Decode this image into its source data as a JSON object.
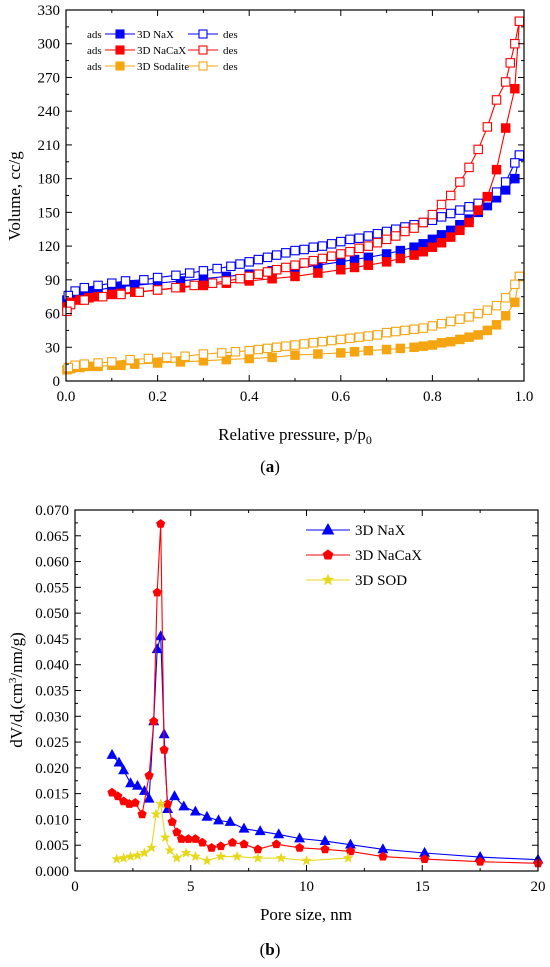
{
  "colors": {
    "naX": "#0000ff",
    "naCaX": "#ff0000",
    "sod": "#f5a511",
    "sodB": "#e8d81c"
  },
  "chart_data": [
    {
      "type": "scatter",
      "caption": "(a)",
      "xlabel": "Relative pressure, p/p0",
      "ylabel": "Volume, cc/g",
      "xlim": [
        0,
        1.0
      ],
      "ylim": [
        0,
        330
      ],
      "xticks": [
        "0.0",
        "0.2",
        "0.4",
        "0.6",
        "0.8",
        "1.0"
      ],
      "yticks": [
        "0",
        "30",
        "60",
        "90",
        "120",
        "150",
        "180",
        "210",
        "240",
        "270",
        "300",
        "330"
      ],
      "grid": false,
      "legend_position": "top-left",
      "legend_rows": [
        {
          "left": "ads",
          "name": "3D NaX",
          "right": "des",
          "color": "#0000ff"
        },
        {
          "left": "ads",
          "name": "3D NaCaX",
          "right": "des",
          "color": "#ff0000"
        },
        {
          "left": "ads",
          "name": "3D Sodalite",
          "right": "des",
          "color": "#f5a511"
        }
      ],
      "series": [
        {
          "name": "3D NaX ads",
          "marker": "square-filled",
          "color": "#0000ff",
          "x": [
            0.002,
            0.01,
            0.03,
            0.05,
            0.07,
            0.1,
            0.12,
            0.15,
            0.2,
            0.25,
            0.3,
            0.35,
            0.4,
            0.45,
            0.5,
            0.55,
            0.6,
            0.63,
            0.66,
            0.7,
            0.73,
            0.76,
            0.78,
            0.8,
            0.82,
            0.84,
            0.86,
            0.88,
            0.9,
            0.92,
            0.94,
            0.96,
            0.98,
            0.99
          ],
          "y": [
            72,
            75,
            78,
            80,
            81,
            83,
            84,
            85,
            87,
            89,
            91,
            93,
            95,
            98,
            100,
            103,
            106,
            108,
            110,
            113,
            116,
            119,
            122,
            126,
            130,
            134,
            139,
            144,
            150,
            156,
            163,
            170,
            180,
            200
          ]
        },
        {
          "name": "3D NaX des",
          "marker": "square-open",
          "color": "#0000ff",
          "x": [
            0.99,
            0.98,
            0.96,
            0.94,
            0.92,
            0.9,
            0.88,
            0.86,
            0.84,
            0.82,
            0.8,
            0.78,
            0.76,
            0.74,
            0.72,
            0.7,
            0.68,
            0.66,
            0.64,
            0.62,
            0.6,
            0.58,
            0.56,
            0.54,
            0.52,
            0.5,
            0.48,
            0.46,
            0.44,
            0.42,
            0.4,
            0.38,
            0.36,
            0.33,
            0.3,
            0.27,
            0.24,
            0.2,
            0.17,
            0.13,
            0.1,
            0.07,
            0.04,
            0.02,
            0.005
          ],
          "y": [
            201,
            194,
            177,
            168,
            162,
            158,
            155,
            152,
            149,
            146,
            143,
            141,
            139,
            137,
            135,
            133,
            131,
            129,
            127,
            126,
            124,
            122,
            120,
            119,
            117,
            116,
            114,
            112,
            110,
            108,
            106,
            104,
            102,
            100,
            98,
            96,
            94,
            92,
            90,
            89,
            87,
            85,
            83,
            80,
            76
          ]
        },
        {
          "name": "3D NaCaX ads",
          "marker": "square-filled",
          "color": "#ff0000",
          "x": [
            0.002,
            0.01,
            0.03,
            0.05,
            0.07,
            0.1,
            0.12,
            0.15,
            0.2,
            0.25,
            0.3,
            0.35,
            0.4,
            0.45,
            0.5,
            0.55,
            0.6,
            0.63,
            0.66,
            0.7,
            0.73,
            0.76,
            0.78,
            0.8,
            0.82,
            0.84,
            0.86,
            0.88,
            0.9,
            0.92,
            0.94,
            0.96,
            0.98,
            0.99
          ],
          "y": [
            66,
            70,
            72,
            74,
            75,
            77,
            78,
            79,
            81,
            83,
            85,
            87,
            89,
            91,
            93,
            96,
            99,
            101,
            103,
            106,
            109,
            112,
            115,
            119,
            123,
            128,
            134,
            141,
            152,
            164,
            188,
            225,
            260,
            320
          ]
        },
        {
          "name": "3D NaCaX des",
          "marker": "square-open",
          "color": "#ff0000",
          "x": [
            0.99,
            0.98,
            0.97,
            0.96,
            0.94,
            0.92,
            0.9,
            0.88,
            0.86,
            0.84,
            0.82,
            0.8,
            0.78,
            0.76,
            0.74,
            0.72,
            0.7,
            0.68,
            0.66,
            0.64,
            0.62,
            0.6,
            0.58,
            0.56,
            0.54,
            0.52,
            0.5,
            0.48,
            0.46,
            0.44,
            0.42,
            0.4,
            0.38,
            0.35,
            0.32,
            0.28,
            0.24,
            0.2,
            0.16,
            0.12,
            0.08,
            0.04,
            0.01,
            0.002
          ],
          "y": [
            320,
            300,
            283,
            266,
            250,
            226,
            206,
            190,
            177,
            165,
            157,
            148,
            141,
            136,
            133,
            129,
            126,
            123,
            120,
            118,
            115,
            113,
            111,
            109,
            107,
            105,
            103,
            101,
            99,
            97,
            95,
            93,
            91,
            89,
            87,
            85,
            83,
            81,
            79,
            77,
            75,
            72,
            68,
            62
          ]
        },
        {
          "name": "3D Sodalite ads",
          "marker": "square-filled",
          "color": "#f5a511",
          "x": [
            0.002,
            0.01,
            0.03,
            0.05,
            0.07,
            0.1,
            0.12,
            0.15,
            0.2,
            0.25,
            0.3,
            0.35,
            0.4,
            0.45,
            0.5,
            0.55,
            0.6,
            0.63,
            0.66,
            0.7,
            0.73,
            0.76,
            0.78,
            0.8,
            0.82,
            0.84,
            0.86,
            0.88,
            0.9,
            0.92,
            0.94,
            0.96,
            0.98,
            0.99
          ],
          "y": [
            10,
            11,
            12,
            13,
            13,
            14,
            14,
            15,
            16,
            17,
            18,
            19,
            20,
            21,
            23,
            24,
            25,
            26,
            27,
            28,
            29,
            30,
            31,
            32,
            34,
            35,
            37,
            39,
            41,
            45,
            50,
            58,
            70,
            93
          ]
        },
        {
          "name": "3D Sodalite des",
          "marker": "square-open",
          "color": "#f5a511",
          "x": [
            0.99,
            0.98,
            0.96,
            0.94,
            0.92,
            0.9,
            0.88,
            0.86,
            0.84,
            0.82,
            0.8,
            0.78,
            0.76,
            0.74,
            0.72,
            0.7,
            0.68,
            0.66,
            0.64,
            0.62,
            0.6,
            0.58,
            0.56,
            0.54,
            0.52,
            0.5,
            0.48,
            0.46,
            0.44,
            0.42,
            0.4,
            0.37,
            0.34,
            0.3,
            0.26,
            0.22,
            0.18,
            0.14,
            0.1,
            0.07,
            0.04,
            0.02,
            0.005
          ],
          "y": [
            93,
            86,
            74,
            67,
            63,
            60,
            57,
            55,
            53,
            51,
            49,
            47,
            46,
            45,
            44,
            43,
            41,
            40,
            39,
            38,
            37,
            36,
            35,
            34,
            33,
            32,
            31,
            30,
            29,
            28,
            27,
            26,
            25,
            24,
            22,
            21,
            20,
            19,
            17,
            16,
            15,
            14,
            12
          ]
        }
      ]
    },
    {
      "type": "line",
      "caption": "(b)",
      "xlabel": "Pore size, nm",
      "ylabel": "dV/d,(cm3/nm/g)",
      "xlim": [
        0,
        20
      ],
      "ylim": [
        0,
        0.07
      ],
      "xticks": [
        "0",
        "5",
        "10",
        "15",
        "20"
      ],
      "yticks": [
        "0.000",
        "0.005",
        "0.010",
        "0.015",
        "0.020",
        "0.025",
        "0.030",
        "0.035",
        "0.040",
        "0.045",
        "0.050",
        "0.055",
        "0.060",
        "0.065",
        "0.070"
      ],
      "grid": false,
      "legend_position": "top-right",
      "series": [
        {
          "name": "3D NaX",
          "marker": "triangle",
          "color": "#0000ff",
          "x": [
            1.6,
            1.9,
            2.1,
            2.4,
            2.7,
            3.0,
            3.2,
            3.4,
            3.55,
            3.7,
            3.85,
            4.0,
            4.3,
            4.7,
            5.2,
            5.7,
            6.2,
            6.7,
            7.3,
            8.0,
            8.8,
            9.7,
            10.8,
            11.9,
            13.3,
            15.1,
            17.5,
            20
          ],
          "y": [
            0.0225,
            0.021,
            0.0195,
            0.017,
            0.0165,
            0.0155,
            0.014,
            0.029,
            0.043,
            0.0455,
            0.0265,
            0.012,
            0.0145,
            0.0125,
            0.0115,
            0.0105,
            0.0098,
            0.0095,
            0.0082,
            0.0077,
            0.0071,
            0.0063,
            0.0058,
            0.0051,
            0.0042,
            0.0035,
            0.0027,
            0.0022
          ]
        },
        {
          "name": "3D NaCaX",
          "marker": "pentagon",
          "color": "#ff0000",
          "x": [
            1.6,
            1.85,
            2.1,
            2.35,
            2.6,
            2.9,
            3.2,
            3.4,
            3.55,
            3.7,
            3.85,
            4.0,
            4.2,
            4.4,
            4.6,
            4.9,
            5.2,
            5.5,
            5.9,
            6.3,
            6.8,
            7.3,
            7.9,
            8.7,
            9.7,
            10.8,
            11.9,
            13.3,
            15.1,
            17.5,
            20
          ],
          "y": [
            0.0152,
            0.0145,
            0.0135,
            0.013,
            0.0132,
            0.011,
            0.0185,
            0.029,
            0.054,
            0.0673,
            0.0235,
            0.013,
            0.0095,
            0.0075,
            0.0062,
            0.0062,
            0.0062,
            0.0055,
            0.0045,
            0.0048,
            0.0055,
            0.0052,
            0.0042,
            0.0052,
            0.0045,
            0.0042,
            0.0038,
            0.0028,
            0.0023,
            0.0018,
            0.0015
          ]
        },
        {
          "name": "3D SOD",
          "marker": "star",
          "color": "#e8d81c",
          "x": [
            1.8,
            2.1,
            2.4,
            2.7,
            3.0,
            3.3,
            3.5,
            3.7,
            3.9,
            4.1,
            4.4,
            4.8,
            5.2,
            5.7,
            6.3,
            7.0,
            7.9,
            8.9,
            10.0,
            11.8
          ],
          "y": [
            0.0023,
            0.0025,
            0.0028,
            0.003,
            0.0035,
            0.0045,
            0.011,
            0.013,
            0.0065,
            0.004,
            0.0025,
            0.0035,
            0.0028,
            0.002,
            0.0028,
            0.0028,
            0.0025,
            0.0025,
            0.002,
            0.0025
          ]
        }
      ]
    }
  ]
}
